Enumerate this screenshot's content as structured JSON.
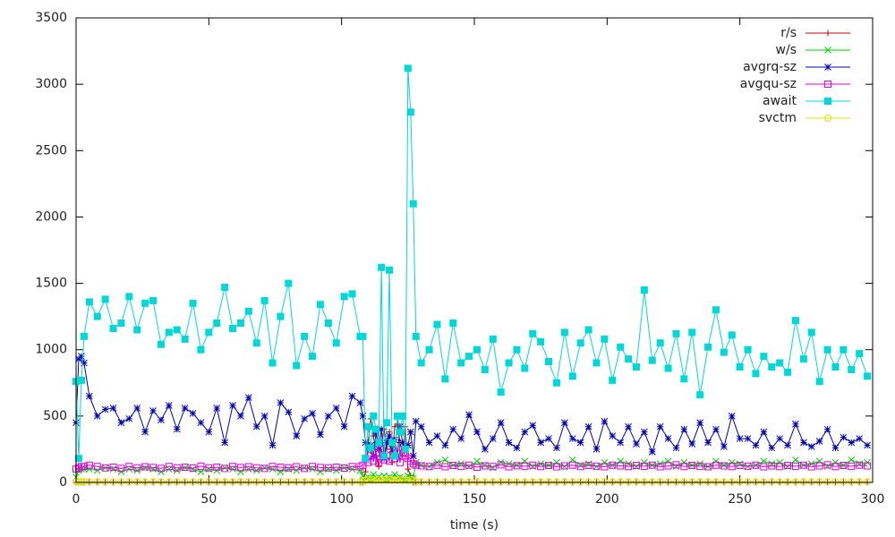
{
  "chart_data": {
    "type": "line",
    "xlabel": "time (s)",
    "xlim": [
      0,
      300
    ],
    "xticks": [
      0,
      50,
      100,
      150,
      200,
      250,
      300
    ],
    "ylim": [
      0,
      3500
    ],
    "yticks": [
      0,
      500,
      1000,
      1500,
      2000,
      2500,
      3000,
      3500
    ],
    "grid": false,
    "legend": "top-right",
    "x": [
      0,
      1,
      2,
      3,
      5,
      8,
      11,
      14,
      17,
      20,
      23,
      26,
      29,
      32,
      35,
      38,
      41,
      44,
      47,
      50,
      53,
      56,
      59,
      62,
      65,
      68,
      71,
      74,
      77,
      80,
      83,
      86,
      89,
      92,
      95,
      98,
      101,
      104,
      107,
      108,
      109,
      110,
      111,
      112,
      113,
      114,
      115,
      116,
      117,
      118,
      119,
      120,
      121,
      122,
      123,
      124,
      125,
      126,
      127,
      128,
      130,
      133,
      136,
      139,
      142,
      145,
      148,
      151,
      154,
      157,
      160,
      163,
      166,
      169,
      172,
      175,
      178,
      181,
      184,
      187,
      190,
      193,
      196,
      199,
      202,
      205,
      208,
      211,
      214,
      217,
      220,
      223,
      226,
      229,
      232,
      235,
      238,
      241,
      244,
      247,
      250,
      253,
      256,
      259,
      262,
      265,
      268,
      271,
      274,
      277,
      280,
      283,
      286,
      289,
      292,
      295,
      298
    ],
    "series": [
      {
        "name": "r/s",
        "color": "#c00000",
        "marker": "plus",
        "values": [
          0,
          0,
          0,
          0,
          0,
          0,
          0,
          0,
          0,
          0,
          0,
          0,
          0,
          0,
          0,
          0,
          0,
          0,
          0,
          0,
          0,
          0,
          0,
          0,
          0,
          0,
          0,
          0,
          0,
          0,
          0,
          0,
          0,
          0,
          0,
          0,
          0,
          0,
          0,
          0,
          80,
          300,
          480,
          350,
          200,
          120,
          300,
          400,
          250,
          380,
          150,
          420,
          440,
          300,
          200,
          420,
          100,
          50,
          0,
          0,
          0,
          0,
          0,
          0,
          0,
          0,
          0,
          0,
          0,
          0,
          0,
          0,
          0,
          0,
          0,
          0,
          0,
          0,
          0,
          0,
          0,
          0,
          0,
          0,
          0,
          0,
          0,
          0,
          0,
          0,
          0,
          0,
          0,
          0,
          0,
          0,
          0,
          0,
          0,
          0,
          0,
          0,
          0,
          0,
          0,
          0,
          0,
          0,
          0,
          0,
          0,
          0,
          0,
          0,
          0,
          0,
          0
        ]
      },
      {
        "name": "w/s",
        "color": "#00d000",
        "marker": "cross",
        "values": [
          40,
          90,
          100,
          100,
          100,
          90,
          110,
          100,
          80,
          100,
          90,
          110,
          100,
          80,
          100,
          90,
          110,
          100,
          80,
          100,
          90,
          110,
          100,
          80,
          100,
          90,
          110,
          100,
          80,
          100,
          90,
          110,
          100,
          80,
          100,
          90,
          110,
          100,
          90,
          50,
          30,
          40,
          20,
          60,
          30,
          40,
          30,
          50,
          20,
          40,
          30,
          60,
          30,
          40,
          30,
          20,
          50,
          40,
          30,
          150,
          130,
          120,
          150,
          170,
          130,
          140,
          120,
          160,
          130,
          110,
          150,
          140,
          130,
          160,
          120,
          140,
          130,
          150,
          120,
          170,
          130,
          140,
          120,
          150,
          130,
          160,
          140,
          120,
          150,
          130,
          140,
          160,
          120,
          150,
          130,
          140,
          120,
          160,
          130,
          150,
          140,
          120,
          130,
          160,
          140,
          150,
          120,
          170,
          130,
          140,
          160,
          120,
          150,
          130,
          170,
          140,
          150
        ]
      },
      {
        "name": "avgrq-sz",
        "color": "#0000b0",
        "marker": "star",
        "values": [
          450,
          930,
          950,
          900,
          650,
          500,
          550,
          560,
          450,
          480,
          560,
          380,
          540,
          470,
          580,
          400,
          560,
          520,
          450,
          380,
          560,
          300,
          580,
          500,
          640,
          420,
          500,
          280,
          600,
          530,
          350,
          480,
          520,
          360,
          500,
          560,
          420,
          650,
          600,
          500,
          300,
          250,
          280,
          200,
          370,
          250,
          400,
          180,
          300,
          350,
          250,
          320,
          200,
          420,
          300,
          250,
          280,
          380,
          200,
          460,
          420,
          300,
          350,
          280,
          400,
          330,
          510,
          380,
          250,
          330,
          450,
          300,
          260,
          380,
          430,
          300,
          330,
          260,
          450,
          330,
          300,
          420,
          250,
          460,
          350,
          300,
          420,
          290,
          380,
          230,
          420,
          330,
          260,
          400,
          290,
          450,
          300,
          400,
          270,
          500,
          330,
          330,
          280,
          380,
          260,
          330,
          280,
          440,
          300,
          270,
          310,
          400,
          260,
          340,
          300,
          330,
          280
        ]
      },
      {
        "name": "avgqu-sz",
        "color": "#e000e0",
        "marker": "square",
        "values": [
          100,
          110,
          120,
          120,
          130,
          120,
          110,
          115,
          105,
          120,
          110,
          118,
          112,
          105,
          120,
          110,
          115,
          108,
          122,
          110,
          115,
          105,
          120,
          112,
          118,
          110,
          105,
          120,
          115,
          110,
          118,
          105,
          120,
          112,
          110,
          115,
          108,
          120,
          118,
          130,
          180,
          150,
          200,
          160,
          220,
          150,
          250,
          170,
          200,
          160,
          300,
          180,
          220,
          150,
          250,
          200,
          180,
          160,
          140,
          130,
          125,
          120,
          130,
          118,
          128,
          122,
          130,
          115,
          125,
          120,
          132,
          118,
          126,
          122,
          130,
          120,
          128,
          118,
          125,
          130,
          120,
          128,
          122,
          118,
          130,
          125,
          120,
          128,
          122,
          130,
          118,
          125,
          132,
          120,
          128,
          122,
          118,
          130,
          125,
          120,
          128,
          122,
          130,
          118,
          125,
          120,
          128,
          122,
          130,
          118,
          125,
          132,
          120,
          128,
          122,
          130,
          125
        ]
      },
      {
        "name": "await",
        "color": "#00d8d8",
        "marker": "filled-square",
        "values": [
          760,
          180,
          770,
          1100,
          1360,
          1250,
          1380,
          1160,
          1200,
          1400,
          1150,
          1350,
          1370,
          1040,
          1130,
          1150,
          1080,
          1350,
          1000,
          1130,
          1200,
          1470,
          1160,
          1200,
          1290,
          1050,
          1370,
          900,
          1250,
          1500,
          880,
          1100,
          950,
          1340,
          1200,
          1050,
          1400,
          1420,
          1100,
          1100,
          180,
          420,
          260,
          500,
          400,
          300,
          1620,
          200,
          450,
          1600,
          300,
          200,
          500,
          380,
          500,
          250,
          3120,
          2790,
          2100,
          1100,
          900,
          1000,
          1190,
          780,
          1200,
          900,
          950,
          1000,
          850,
          1080,
          680,
          900,
          1000,
          860,
          1120,
          1060,
          910,
          750,
          1130,
          800,
          1050,
          1150,
          900,
          1080,
          770,
          1020,
          930,
          870,
          1450,
          920,
          1050,
          860,
          1120,
          780,
          1130,
          660,
          1020,
          1300,
          980,
          1110,
          870,
          1000,
          820,
          950,
          870,
          900,
          830,
          1220,
          930,
          1130,
          760,
          1000,
          870,
          1000,
          850,
          970,
          800
        ]
      },
      {
        "name": "svctm",
        "color": "#e0e000",
        "marker": "circle",
        "values": [
          5,
          5,
          5,
          5,
          5,
          5,
          5,
          5,
          5,
          5,
          5,
          5,
          5,
          5,
          5,
          5,
          5,
          5,
          5,
          5,
          5,
          5,
          5,
          5,
          5,
          5,
          5,
          5,
          5,
          5,
          5,
          5,
          5,
          5,
          5,
          5,
          5,
          5,
          5,
          5,
          15,
          20,
          15,
          20,
          15,
          20,
          15,
          20,
          15,
          20,
          15,
          20,
          15,
          20,
          15,
          20,
          15,
          20,
          15,
          5,
          5,
          5,
          5,
          5,
          5,
          5,
          5,
          5,
          5,
          5,
          5,
          5,
          5,
          5,
          5,
          5,
          5,
          5,
          5,
          5,
          5,
          5,
          5,
          5,
          5,
          5,
          5,
          5,
          5,
          5,
          5,
          5,
          5,
          5,
          5,
          5,
          5,
          5,
          5,
          5,
          5,
          5,
          5,
          5,
          5,
          5,
          5,
          5,
          5,
          5,
          5,
          5,
          5,
          5,
          5,
          5,
          5
        ]
      }
    ]
  }
}
